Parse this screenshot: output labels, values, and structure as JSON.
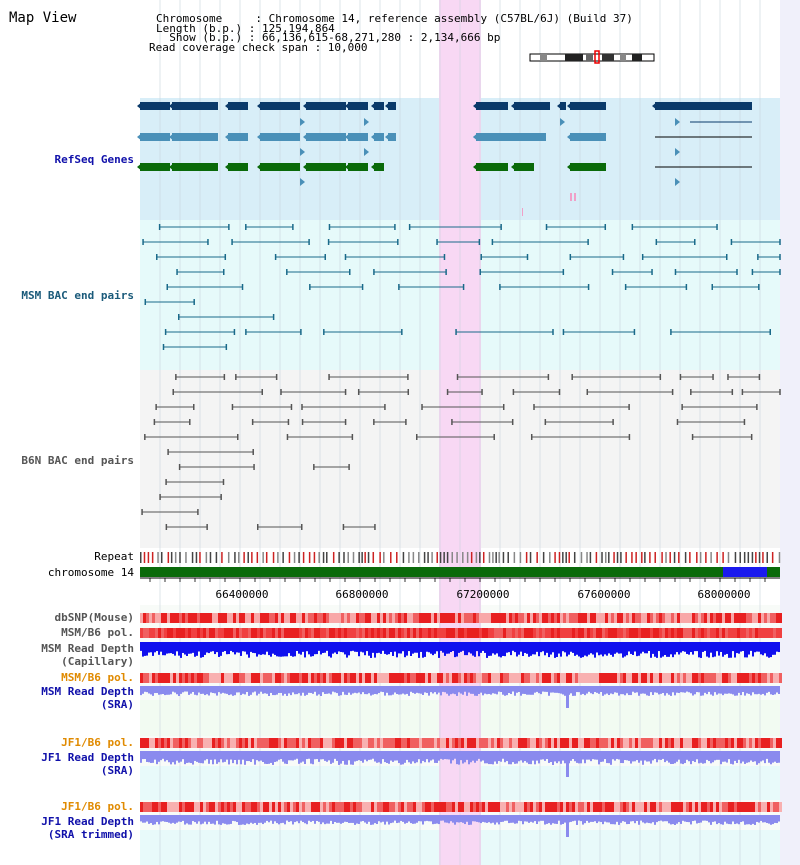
{
  "map_title": "Map View",
  "header": {
    "lines": [
      "Chromosome     : Chromosome 14, reference assembly (C57BL/6J) (Build 37)",
      "Length (b.p.) : 125,194,864",
      "  Show (b.p.) : 66,136,615-68,271,280 : 2,134,666 bp",
      "Read coverage check span : 10,000"
    ]
  },
  "tracks": {
    "refseq": "RefSeq Genes",
    "msm_bac": "MSM BAC end pairs",
    "b6n_bac": "B6N BAC end pairs",
    "repeat": "Repeat",
    "chromosome": "chromosome 14",
    "dbsnp": "dbSNP(Mouse)",
    "msm_b6_pol": "MSM/B6 pol.",
    "msm_depth_cap_1": "MSM Read Depth",
    "msm_depth_cap_2": "(Capillary)",
    "msm_b6_pol_2": "MSM/B6 pol.",
    "msm_depth_sra_1": "MSM Read Depth",
    "msm_depth_sra_2": "(SRA)",
    "jf1_pol_1": "JF1/B6 pol.",
    "jf1_depth_sra_1": "JF1 Read Depth",
    "jf1_depth_sra_2": "(SRA)",
    "jf1_pol_2": "JF1/B6 pol.",
    "jf1_depth_trim_1": "JF1 Read Depth",
    "jf1_depth_trim_2": "(SRA trimmed)"
  },
  "ticks": [
    "66400000",
    "66800000",
    "67200000",
    "67600000",
    "68000000"
  ],
  "colors": {
    "refseq_bg": "#d8eef8",
    "msm_bg": "#e6fafa",
    "b6n_bg": "#f4f4f4",
    "highlight": "#f8d8f4",
    "gene1": "#0a3a6a",
    "gene2": "#4a90b8",
    "gene3": "#0a6a0a",
    "chromosome_bar": "#0a6a0a",
    "chromosome_mark": "#1a1aee",
    "msm_pair": "#1a6a8a",
    "b6n_pair": "#555555",
    "depth_dark": "#1010ee",
    "depth_light": "#8a8aee",
    "label_blue": "#1010aa",
    "label_teal": "#1a5a7a",
    "label_gray": "#555555",
    "label_orange": "#e08a00"
  }
}
